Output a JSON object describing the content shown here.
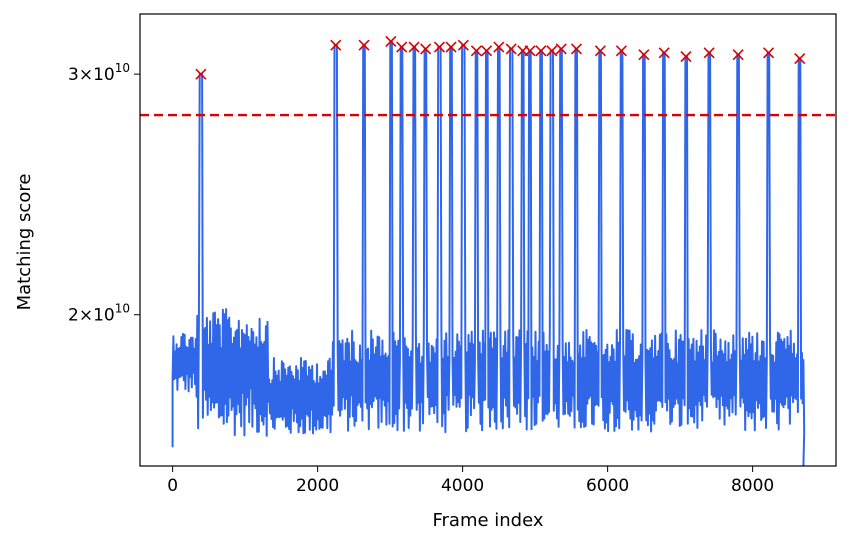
{
  "chart_data": {
    "type": "line",
    "title": "",
    "xlabel": "Frame index",
    "ylabel": "Matching score",
    "xlim": [
      -450,
      9150
    ],
    "ylim": [
      15500000000.0,
      33200000000.0
    ],
    "y_scale": "log",
    "x_ticks": [
      {
        "value": 0,
        "label": "0"
      },
      {
        "value": 2000,
        "label": "2000"
      },
      {
        "value": 4000,
        "label": "4000"
      },
      {
        "value": 6000,
        "label": "6000"
      },
      {
        "value": 8000,
        "label": "8000"
      }
    ],
    "y_ticks": [
      {
        "value": 20000000000.0,
        "base": "2",
        "exp": "10"
      },
      {
        "value": 30000000000.0,
        "base": "3",
        "exp": "10"
      }
    ],
    "threshold": {
      "value": 28000000000.0,
      "color": "#dd0000",
      "style": "dashed"
    },
    "series": [
      {
        "name": "Matching score",
        "color": "#2f67e8",
        "noise_segments": [
          {
            "x_start": 0,
            "x_end": 330,
            "low": 17500000000.0,
            "high": 19500000000.0
          },
          {
            "x_start": 330,
            "x_end": 1330,
            "low": 16300000000.0,
            "high": 20200000000.0
          },
          {
            "x_start": 1330,
            "x_end": 2200,
            "low": 16300000000.0,
            "high": 18600000000.0
          },
          {
            "x_start": 2200,
            "x_end": 8720,
            "low": 16400000000.0,
            "high": 19500000000.0
          }
        ]
      }
    ],
    "peaks": {
      "marker": "x",
      "color": "#dd0000",
      "points": [
        [
          390,
          30000000000.0
        ],
        [
          2250,
          31500000000.0
        ],
        [
          2640,
          31500000000.0
        ],
        [
          3010,
          31700000000.0
        ],
        [
          3160,
          31400000000.0
        ],
        [
          3330,
          31400000000.0
        ],
        [
          3490,
          31300000000.0
        ],
        [
          3680,
          31400000000.0
        ],
        [
          3840,
          31400000000.0
        ],
        [
          4010,
          31500000000.0
        ],
        [
          4190,
          31200000000.0
        ],
        [
          4330,
          31200000000.0
        ],
        [
          4500,
          31400000000.0
        ],
        [
          4670,
          31300000000.0
        ],
        [
          4830,
          31200000000.0
        ],
        [
          4930,
          31200000000.0
        ],
        [
          5080,
          31200000000.0
        ],
        [
          5230,
          31200000000.0
        ],
        [
          5360,
          31300000000.0
        ],
        [
          5570,
          31300000000.0
        ],
        [
          5900,
          31200000000.0
        ],
        [
          6190,
          31200000000.0
        ],
        [
          6500,
          31000000000.0
        ],
        [
          6780,
          31100000000.0
        ],
        [
          7080,
          30900000000.0
        ],
        [
          7400,
          31100000000.0
        ],
        [
          7800,
          31000000000.0
        ],
        [
          8220,
          31100000000.0
        ],
        [
          8650,
          30800000000.0
        ]
      ]
    }
  }
}
